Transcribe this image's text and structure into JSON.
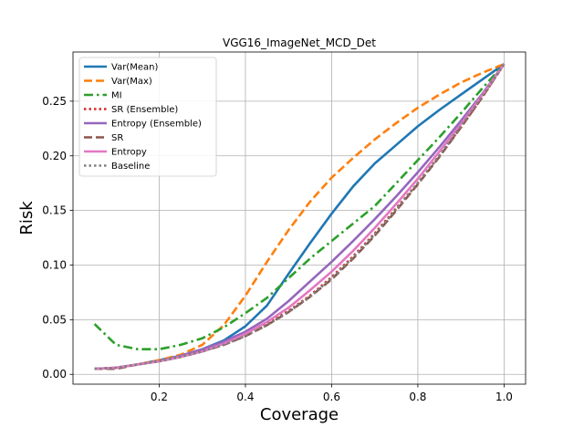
{
  "chart_data": {
    "type": "line",
    "title": "VGG16_ImageNet_MCD_Det",
    "xlabel": "Coverage",
    "ylabel": "Risk",
    "xlim": [
      0.0,
      1.05
    ],
    "ylim": [
      -0.009,
      0.295
    ],
    "xticks": [
      0.2,
      0.4,
      0.6,
      0.8,
      1.0
    ],
    "xtick_labels": [
      "0.2",
      "0.4",
      "0.6",
      "0.8",
      "1.0"
    ],
    "yticks": [
      0.0,
      0.05,
      0.1,
      0.15,
      0.2,
      0.25
    ],
    "ytick_labels": [
      "0.00",
      "0.05",
      "0.10",
      "0.15",
      "0.20",
      "0.25"
    ],
    "grid": true,
    "legend_position": "top-left",
    "series": [
      {
        "name": "Var(Mean)",
        "color": "#1f77b4",
        "dash": "solid",
        "x": [
          0.05,
          0.1,
          0.15,
          0.2,
          0.25,
          0.3,
          0.35,
          0.4,
          0.45,
          0.5,
          0.55,
          0.6,
          0.65,
          0.7,
          0.75,
          0.8,
          0.85,
          0.9,
          0.95,
          1.0
        ],
        "y": [
          0.005,
          0.006,
          0.009,
          0.013,
          0.017,
          0.023,
          0.031,
          0.044,
          0.063,
          0.092,
          0.12,
          0.147,
          0.172,
          0.193,
          0.21,
          0.227,
          0.242,
          0.256,
          0.27,
          0.284
        ]
      },
      {
        "name": "Var(Max)",
        "color": "#ff7f0e",
        "dash": "dashed",
        "x": [
          0.05,
          0.1,
          0.15,
          0.2,
          0.25,
          0.3,
          0.35,
          0.4,
          0.45,
          0.5,
          0.55,
          0.6,
          0.65,
          0.7,
          0.75,
          0.8,
          0.85,
          0.9,
          0.95,
          1.0
        ],
        "y": [
          0.005,
          0.006,
          0.009,
          0.013,
          0.018,
          0.027,
          0.045,
          0.072,
          0.103,
          0.132,
          0.158,
          0.18,
          0.198,
          0.215,
          0.23,
          0.244,
          0.256,
          0.267,
          0.276,
          0.284
        ]
      },
      {
        "name": "MI",
        "color": "#2ca02c",
        "dash": "dashdot",
        "x": [
          0.05,
          0.1,
          0.15,
          0.2,
          0.25,
          0.3,
          0.35,
          0.4,
          0.45,
          0.5,
          0.55,
          0.6,
          0.65,
          0.7,
          0.75,
          0.8,
          0.85,
          0.9,
          0.95,
          1.0
        ],
        "y": [
          0.046,
          0.027,
          0.023,
          0.023,
          0.027,
          0.033,
          0.043,
          0.056,
          0.07,
          0.088,
          0.106,
          0.122,
          0.138,
          0.154,
          0.175,
          0.196,
          0.217,
          0.239,
          0.262,
          0.284
        ]
      },
      {
        "name": "SR (Ensemble)",
        "color": "#d62728",
        "dash": "dotted",
        "x": [
          0.05,
          0.1,
          0.15,
          0.2,
          0.25,
          0.3,
          0.35,
          0.4,
          0.45,
          0.5,
          0.55,
          0.6,
          0.65,
          0.7,
          0.75,
          0.8,
          0.85,
          0.9,
          0.95,
          1.0
        ],
        "y": [
          0.005,
          0.006,
          0.009,
          0.012,
          0.016,
          0.021,
          0.028,
          0.036,
          0.046,
          0.058,
          0.072,
          0.089,
          0.108,
          0.129,
          0.152,
          0.175,
          0.2,
          0.226,
          0.254,
          0.284
        ]
      },
      {
        "name": "Entropy (Ensemble)",
        "color": "#9467bd",
        "dash": "solid",
        "x": [
          0.05,
          0.1,
          0.15,
          0.2,
          0.25,
          0.3,
          0.35,
          0.4,
          0.45,
          0.5,
          0.55,
          0.6,
          0.65,
          0.7,
          0.75,
          0.8,
          0.85,
          0.9,
          0.95,
          1.0
        ],
        "y": [
          0.005,
          0.006,
          0.009,
          0.012,
          0.017,
          0.023,
          0.03,
          0.039,
          0.051,
          0.067,
          0.085,
          0.103,
          0.122,
          0.142,
          0.163,
          0.185,
          0.208,
          0.232,
          0.257,
          0.284
        ]
      },
      {
        "name": "SR",
        "color": "#8c564b",
        "dash": "dashed",
        "x": [
          0.05,
          0.1,
          0.15,
          0.2,
          0.25,
          0.3,
          0.35,
          0.4,
          0.45,
          0.5,
          0.55,
          0.6,
          0.65,
          0.7,
          0.75,
          0.8,
          0.85,
          0.9,
          0.95,
          1.0
        ],
        "y": [
          0.005,
          0.005,
          0.009,
          0.012,
          0.016,
          0.021,
          0.027,
          0.035,
          0.045,
          0.057,
          0.071,
          0.087,
          0.106,
          0.127,
          0.15,
          0.174,
          0.199,
          0.226,
          0.254,
          0.284
        ]
      },
      {
        "name": "Entropy",
        "color": "#e377c2",
        "dash": "solid",
        "x": [
          0.05,
          0.1,
          0.15,
          0.2,
          0.25,
          0.3,
          0.35,
          0.4,
          0.45,
          0.5,
          0.55,
          0.6,
          0.65,
          0.7,
          0.75,
          0.8,
          0.85,
          0.9,
          0.95,
          1.0
        ],
        "y": [
          0.005,
          0.006,
          0.009,
          0.012,
          0.016,
          0.021,
          0.028,
          0.037,
          0.048,
          0.061,
          0.077,
          0.094,
          0.113,
          0.134,
          0.156,
          0.179,
          0.204,
          0.229,
          0.256,
          0.284
        ]
      },
      {
        "name": "Baseline",
        "color": "#7f7f7f",
        "dash": "dotted",
        "x": [
          0.05,
          0.1,
          0.15,
          0.2,
          0.25,
          0.3,
          0.35,
          0.4,
          0.45,
          0.5,
          0.55,
          0.6,
          0.65,
          0.7,
          0.75,
          0.8,
          0.85,
          0.9,
          0.95,
          1.0
        ],
        "y": [
          0.005,
          0.006,
          0.009,
          0.012,
          0.016,
          0.021,
          0.027,
          0.035,
          0.045,
          0.057,
          0.071,
          0.088,
          0.107,
          0.128,
          0.151,
          0.175,
          0.2,
          0.227,
          0.255,
          0.284
        ]
      }
    ]
  }
}
